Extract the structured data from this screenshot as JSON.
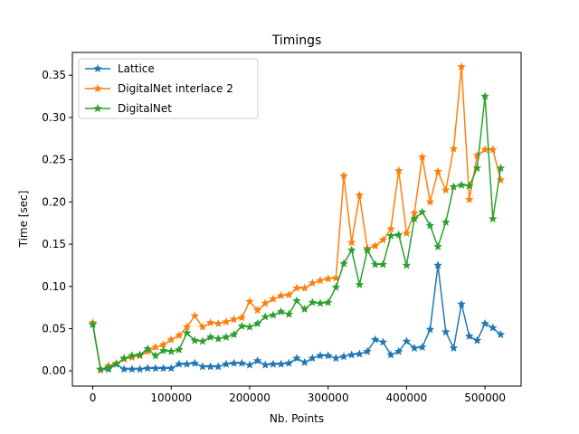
{
  "chart_data": {
    "type": "line",
    "title": "Timings",
    "xlabel": "Nb. Points",
    "ylabel": "Time [sec]",
    "xlim": [
      -26000,
      546000
    ],
    "ylim": [
      -0.018,
      0.377
    ],
    "xticks": [
      0,
      100000,
      200000,
      300000,
      400000,
      500000
    ],
    "xtick_labels": [
      "0",
      "100000",
      "200000",
      "300000",
      "400000",
      "500000"
    ],
    "yticks": [
      0.0,
      0.05,
      0.1,
      0.15,
      0.2,
      0.25,
      0.3,
      0.35
    ],
    "ytick_labels": [
      "0.00",
      "0.05",
      "0.10",
      "0.15",
      "0.20",
      "0.25",
      "0.30",
      "0.35"
    ],
    "grid": false,
    "legend_position": "top-left",
    "marker": "star",
    "x": [
      0,
      10000,
      20000,
      30000,
      40000,
      50000,
      60000,
      70000,
      80000,
      90000,
      100000,
      110000,
      120000,
      130000,
      140000,
      150000,
      160000,
      170000,
      180000,
      190000,
      200000,
      210000,
      220000,
      230000,
      240000,
      250000,
      260000,
      270000,
      280000,
      290000,
      300000,
      310000,
      320000,
      330000,
      340000,
      350000,
      360000,
      370000,
      380000,
      390000,
      400000,
      410000,
      420000,
      430000,
      440000,
      450000,
      460000,
      470000,
      480000,
      490000,
      500000,
      510000,
      520000
    ],
    "series": [
      {
        "name": "Lattice",
        "color": "#1f77b4",
        "values": [
          0.055,
          0.001,
          0.002,
          0.008,
          0.002,
          0.002,
          0.002,
          0.003,
          0.003,
          0.003,
          0.003,
          0.008,
          0.008,
          0.009,
          0.005,
          0.005,
          0.005,
          0.008,
          0.009,
          0.009,
          0.007,
          0.012,
          0.007,
          0.008,
          0.008,
          0.009,
          0.015,
          0.01,
          0.015,
          0.018,
          0.018,
          0.015,
          0.017,
          0.019,
          0.02,
          0.023,
          0.037,
          0.034,
          0.019,
          0.023,
          0.035,
          0.027,
          0.028,
          0.049,
          0.125,
          0.046,
          0.027,
          0.079,
          0.041,
          0.036,
          0.056,
          0.051,
          0.043
        ]
      },
      {
        "name": "DigitalNet interlace 2",
        "color": "#ff7f0e",
        "values": [
          0.057,
          0.001,
          0.006,
          0.009,
          0.014,
          0.016,
          0.018,
          0.023,
          0.028,
          0.031,
          0.037,
          0.042,
          0.052,
          0.065,
          0.052,
          0.057,
          0.056,
          0.058,
          0.061,
          0.063,
          0.082,
          0.072,
          0.08,
          0.085,
          0.089,
          0.09,
          0.098,
          0.098,
          0.104,
          0.107,
          0.109,
          0.11,
          0.231,
          0.152,
          0.208,
          0.145,
          0.148,
          0.155,
          0.168,
          0.237,
          0.163,
          0.187,
          0.253,
          0.2,
          0.236,
          0.214,
          0.263,
          0.36,
          0.203,
          0.255,
          0.262,
          0.262,
          0.226
        ]
      },
      {
        "name": "DigitalNet",
        "color": "#2ca02c",
        "values": [
          0.055,
          0.002,
          0.004,
          0.008,
          0.015,
          0.018,
          0.019,
          0.026,
          0.018,
          0.024,
          0.023,
          0.025,
          0.045,
          0.036,
          0.035,
          0.04,
          0.038,
          0.04,
          0.043,
          0.053,
          0.052,
          0.056,
          0.064,
          0.066,
          0.07,
          0.067,
          0.083,
          0.073,
          0.081,
          0.08,
          0.081,
          0.099,
          0.127,
          0.143,
          0.102,
          0.143,
          0.126,
          0.126,
          0.16,
          0.161,
          0.125,
          0.18,
          0.188,
          0.172,
          0.147,
          0.176,
          0.218,
          0.22,
          0.219,
          0.24,
          0.325,
          0.18,
          0.24
        ]
      }
    ]
  }
}
